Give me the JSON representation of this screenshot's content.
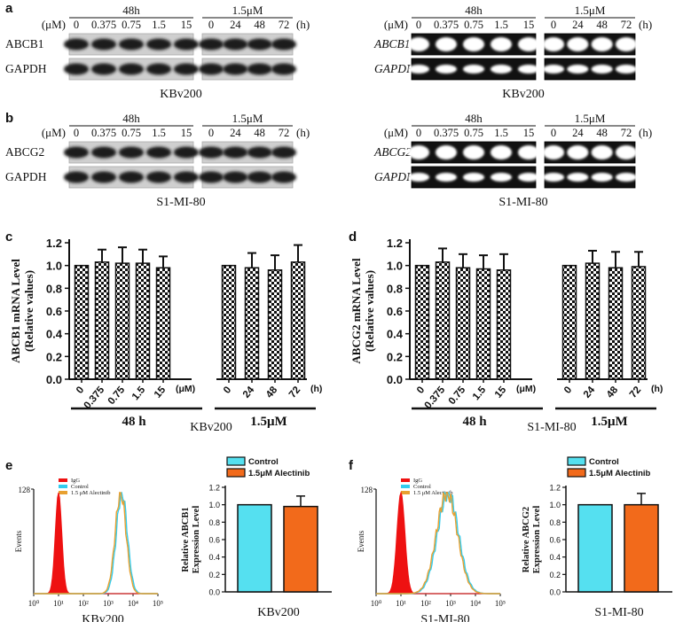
{
  "panels": {
    "a": {
      "label": "a",
      "blots": [
        {
          "id": "a-western",
          "style": "western",
          "header_groups": [
            "48h",
            "1.5μM"
          ],
          "unit_left": "(μM)",
          "unit_right": "(h)",
          "lanes_g1": [
            "0",
            "0.375",
            "0.75",
            "1.5",
            "15"
          ],
          "lanes_g2": [
            "0",
            "24",
            "48",
            "72"
          ],
          "rows": [
            "ABCB1",
            "GAPDH"
          ],
          "caption": "KBv200"
        },
        {
          "id": "a-pcr",
          "style": "pcr",
          "header_groups": [
            "48h",
            "1.5μM"
          ],
          "unit_left": "(μM)",
          "unit_right": "(h)",
          "lanes_g1": [
            "0",
            "0.375",
            "0.75",
            "1.5",
            "15"
          ],
          "lanes_g2": [
            "0",
            "24",
            "48",
            "72"
          ],
          "rows": [
            "ABCB1",
            "GAPDH"
          ],
          "caption": "KBv200"
        }
      ]
    },
    "b": {
      "label": "b",
      "blots": [
        {
          "id": "b-western",
          "style": "western",
          "header_groups": [
            "48h",
            "1.5μM"
          ],
          "unit_left": "(μM)",
          "unit_right": "(h)",
          "lanes_g1": [
            "0",
            "0.375",
            "0.75",
            "1.5",
            "15"
          ],
          "lanes_g2": [
            "0",
            "24",
            "48",
            "72"
          ],
          "rows": [
            "ABCG2",
            "GAPDH"
          ],
          "caption": "S1-MI-80"
        },
        {
          "id": "b-pcr",
          "style": "pcr",
          "header_groups": [
            "48h",
            "1.5μM"
          ],
          "unit_left": "(μM)",
          "unit_right": "(h)",
          "lanes_g1": [
            "0",
            "0.375",
            "0.75",
            "1.5",
            "15"
          ],
          "lanes_g2": [
            "0",
            "24",
            "48",
            "72"
          ],
          "rows": [
            "ABCG2",
            "GAPDH"
          ],
          "caption": "S1-MI-80"
        }
      ]
    },
    "c": {
      "label": "c"
    },
    "d": {
      "label": "d"
    },
    "e": {
      "label": "e"
    },
    "f": {
      "label": "f"
    }
  },
  "chart_data": [
    {
      "id": "c",
      "type": "bar",
      "pattern": "checkered",
      "ylabel": "ABCB1 mRNA Level (Relative values)",
      "ylabel_lines": [
        "ABCB1 mRNA Level",
        "(Relative values)"
      ],
      "ylim": [
        0,
        1.2
      ],
      "yticks": [
        "0.0",
        "0.2",
        "0.4",
        "0.6",
        "0.8",
        "1.0",
        "1.2"
      ],
      "categories": [
        "0",
        "0.375",
        "0.75",
        "1.5",
        "15",
        "0",
        "24",
        "48",
        "72"
      ],
      "values": [
        1.0,
        1.03,
        1.02,
        1.02,
        0.98,
        1.0,
        0.98,
        0.96,
        1.03
      ],
      "errors": [
        0.0,
        0.11,
        0.14,
        0.12,
        0.1,
        0.0,
        0.13,
        0.13,
        0.15
      ],
      "unit_left": "(μM)",
      "unit_right": "(h)",
      "groups": [
        "48 h",
        "1.5μM"
      ],
      "caption": "KBv200"
    },
    {
      "id": "d",
      "type": "bar",
      "pattern": "checkered",
      "ylabel": "ABCG2 mRNA Level (Relative values)",
      "ylabel_lines": [
        "ABCG2 mRNA Level",
        "(Relative values)"
      ],
      "ylim": [
        0,
        1.2
      ],
      "yticks": [
        "0.0",
        "0.2",
        "0.4",
        "0.6",
        "0.8",
        "1.0",
        "1.2"
      ],
      "categories": [
        "0",
        "0.375",
        "0.75",
        "1.5",
        "15",
        "0",
        "24",
        "48",
        "72"
      ],
      "values": [
        1.0,
        1.03,
        0.98,
        0.97,
        0.96,
        1.0,
        1.02,
        0.98,
        0.99
      ],
      "errors": [
        0.0,
        0.12,
        0.12,
        0.12,
        0.14,
        0.0,
        0.11,
        0.14,
        0.13
      ],
      "unit_left": "(μM)",
      "unit_right": "(h)",
      "groups": [
        "48 h",
        "1.5μM"
      ],
      "caption": "S1-MI-80"
    },
    {
      "id": "e-hist",
      "type": "area",
      "ylabel": "Events",
      "ymax_label": "128",
      "xticks": [
        "10⁰",
        "10¹",
        "10²",
        "10³",
        "10⁴",
        "10⁵"
      ],
      "log_x": true,
      "series": [
        {
          "name": "IgG",
          "color": "#ee1111",
          "peak_decade": 1.0,
          "width": 0.13,
          "fill": true
        },
        {
          "name": "Control",
          "color": "#33ccee",
          "peak_decade": 3.55,
          "width": 0.22,
          "fill": false
        },
        {
          "name": "1.5 μM Alectinib",
          "color": "#e8a030",
          "peak_decade": 3.5,
          "width": 0.22,
          "fill": false
        }
      ],
      "caption": "KBv200"
    },
    {
      "id": "e-bar",
      "type": "bar",
      "ylabel": "Relative ABCB1 Expression Level",
      "ylabel_lines": [
        "Relative ABCB1",
        "Expression Level"
      ],
      "ylim": [
        0,
        1.2
      ],
      "yticks": [
        "0.0",
        "0.2",
        "0.4",
        "0.6",
        "0.8",
        "1.0",
        "1.2"
      ],
      "series": [
        {
          "name": "Control",
          "value": 1.0,
          "error": 0.0,
          "color": "#55e0f0"
        },
        {
          "name": "1.5μM Alectinib",
          "value": 0.98,
          "error": 0.12,
          "color": "#f26a1b"
        }
      ],
      "caption": "KBv200"
    },
    {
      "id": "f-hist",
      "type": "area",
      "ylabel": "Events",
      "ymax_label": "128",
      "xticks": [
        "10⁰",
        "10¹",
        "10²",
        "10³",
        "10⁴",
        "10⁵"
      ],
      "log_x": true,
      "series": [
        {
          "name": "IgG",
          "color": "#ee1111",
          "peak_decade": 1.0,
          "width": 0.16,
          "fill": true
        },
        {
          "name": "Control",
          "color": "#33ccee",
          "peak_decade": 2.9,
          "width": 0.42,
          "fill": false
        },
        {
          "name": "1.5 μM Alectinib",
          "color": "#e8a030",
          "peak_decade": 2.85,
          "width": 0.42,
          "fill": false
        }
      ],
      "caption": "S1-MI-80"
    },
    {
      "id": "f-bar",
      "type": "bar",
      "ylabel": "Relative ABCG2 Expression Level",
      "ylabel_lines": [
        "Relative ABCG2",
        "Expression Level"
      ],
      "ylim": [
        0,
        1.2
      ],
      "yticks": [
        "0.0",
        "0.2",
        "0.4",
        "0.6",
        "0.8",
        "1.0",
        "1.2"
      ],
      "series": [
        {
          "name": "Control",
          "value": 1.0,
          "error": 0.0,
          "color": "#55e0f0"
        },
        {
          "name": "1.5μM Alectinib",
          "value": 1.0,
          "error": 0.13,
          "color": "#f26a1b"
        }
      ],
      "caption": "S1-MI-80"
    }
  ]
}
